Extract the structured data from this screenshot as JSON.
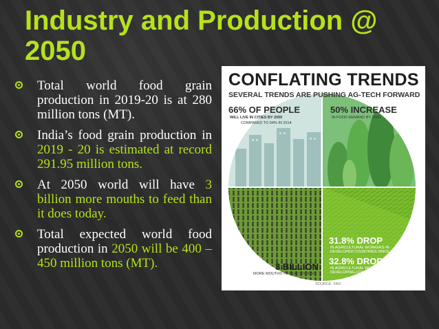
{
  "slide": {
    "title": "Industry and Production @ 2050",
    "bullets": [
      {
        "parts": [
          {
            "text": "Total world food grain production in 2019-20 is at 280 million tons (MT).",
            "hl": false
          }
        ]
      },
      {
        "parts": [
          {
            "text": "India’s food grain production in ",
            "hl": false
          },
          {
            "text": "2019 - 20 is estimated at record 291.95 million tons.",
            "hl": true
          }
        ]
      },
      {
        "parts": [
          {
            "text": "At 2050 world will have ",
            "hl": false
          },
          {
            "text": "3 billion more mouths to feed than it does today.",
            "hl": true
          }
        ]
      },
      {
        "parts": [
          {
            "text": "Total expected world food production in ",
            "hl": false
          },
          {
            "text": "2050",
            "hl": true
          },
          {
            "text": " will be 400 – 450 million tons (MT).",
            "hl": true
          }
        ]
      }
    ]
  },
  "infographic": {
    "title": "CONFLATING TRENDS",
    "subtitle": "SEVERAL TRENDS ARE PUSHING AG-TECH FORWARD",
    "stat_people": "66% OF PEOPLE",
    "stat_people_sub1": "WILL LIVE IN CITIES BY 2050",
    "stat_people_sub2": "COMPARED TO 54% IN 2014",
    "stat_increase": "50% INCREASE",
    "stat_increase_sub": "IN FOOD DEMAND BY 2050",
    "stat_drop1": "31.8% DROP",
    "stat_drop1_sub1": "IN AGRICULTURAL WORKERS IN",
    "stat_drop1_sub2": "DEVELOPED COUNTRIES SINCE 1950",
    "stat_drop2": "32.8% DROP",
    "stat_drop2_sub1": "IN AGRICULTURAL WORKERS IN",
    "stat_drop2_sub2": "DEVELOPING COUNTRIES",
    "stat_billion": "3 BILLION",
    "stat_billion_sub": "MORE MOUTHS TO FEED BY 2050",
    "source": "SOURCE: FAO",
    "colors": {
      "city": "#9ec7c4",
      "forest": "#5aa64a",
      "crowd": "#2f3b2a",
      "field": "#7bbf2a",
      "accent": "#b6e21c"
    }
  }
}
